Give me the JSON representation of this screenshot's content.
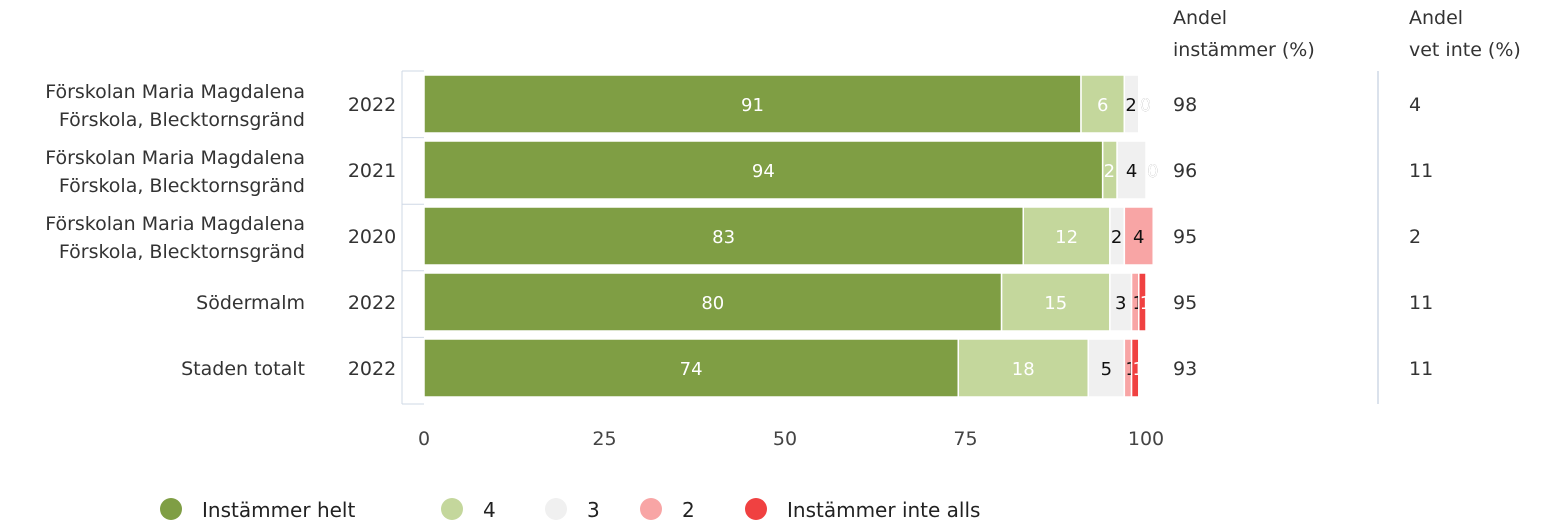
{
  "chart_data": {
    "type": "bar",
    "orientation": "horizontal",
    "stacked": true,
    "rows": [
      {
        "name": "Förskolan Maria Magdalena Förskola, Blecktornsgränd",
        "year": "2022",
        "values": [
          91,
          6,
          2,
          0,
          0
        ],
        "andel_instammer": "98",
        "andel_vet_inte": "4"
      },
      {
        "name": "Förskolan Maria Magdalena Förskola, Blecktornsgränd",
        "year": "2021",
        "values": [
          94,
          2,
          4,
          0,
          0
        ],
        "andel_instammer": "96",
        "andel_vet_inte": "11"
      },
      {
        "name": "Förskolan Maria Magdalena Förskola, Blecktornsgränd",
        "year": "2020",
        "values": [
          83,
          12,
          2,
          4,
          0
        ],
        "andel_instammer": "95",
        "andel_vet_inte": "2"
      },
      {
        "name": "Södermalm",
        "year": "2022",
        "values": [
          80,
          15,
          3,
          1,
          1
        ],
        "andel_instammer": "95",
        "andel_vet_inte": "11"
      },
      {
        "name": "Staden totalt",
        "year": "2022",
        "values": [
          74,
          18,
          5,
          1,
          1
        ],
        "andel_instammer": "93",
        "andel_vet_inte": "11"
      }
    ],
    "series": [
      {
        "name": "Instämmer helt",
        "color": "#7f9e44",
        "label_color": "#ffffff"
      },
      {
        "name": "4",
        "color": "#c4d79c",
        "label_color": "#ffffff"
      },
      {
        "name": "3",
        "color": "#f0f0f0",
        "label_color": "#111111"
      },
      {
        "name": "2",
        "color": "#f8a5a5",
        "label_color": "#111111"
      },
      {
        "name": "Instämmer inte alls",
        "color": "#f04141",
        "label_color": "#ffffff"
      }
    ],
    "xlim": [
      0,
      100
    ],
    "xticks": [
      "0",
      "25",
      "50",
      "75",
      "100"
    ],
    "columns": {
      "andel_instammer": [
        "Andel",
        "instämmer (%)"
      ],
      "andel_vet_inte": [
        "Andel",
        "vet inte (%)"
      ]
    },
    "legend_position": "bottom-left",
    "grid": false
  }
}
